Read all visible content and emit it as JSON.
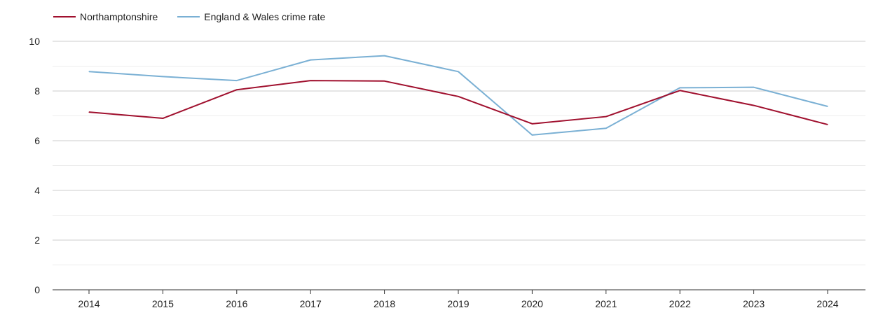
{
  "chart_data": {
    "type": "line",
    "title": "",
    "xlabel": "",
    "ylabel": "",
    "categories": [
      "2014",
      "2015",
      "2016",
      "2017",
      "2018",
      "2019",
      "2020",
      "2021",
      "2022",
      "2023",
      "2024"
    ],
    "ylim": [
      0,
      10
    ],
    "yticks": [
      0,
      2,
      4,
      6,
      8,
      10
    ],
    "grid": true,
    "legend_position": "top-left",
    "series": [
      {
        "name": "Northamptonshire",
        "color": "#a0102e",
        "values": [
          7.15,
          6.9,
          8.05,
          8.42,
          8.4,
          7.78,
          6.68,
          6.97,
          8.02,
          7.42,
          6.65
        ]
      },
      {
        "name": "England & Wales crime rate",
        "color": "#7ab0d4",
        "values": [
          8.78,
          8.58,
          8.42,
          9.25,
          9.42,
          8.78,
          6.23,
          6.5,
          8.13,
          8.15,
          7.38
        ]
      }
    ]
  }
}
